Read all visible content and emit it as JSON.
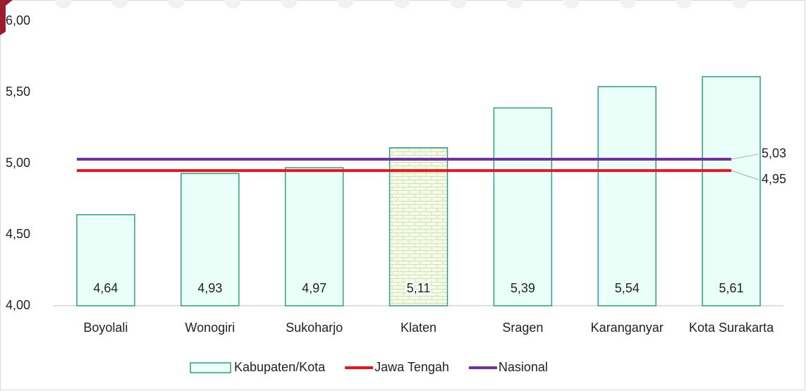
{
  "chart_data": {
    "type": "bar",
    "categories": [
      "Boyolali",
      "Wonogiri",
      "Sukoharjo",
      "Klaten",
      "Sragen",
      "Karanganyar",
      "Kota Surakarta"
    ],
    "series": [
      {
        "name": "Kabupaten/Kota",
        "type": "bar",
        "color": "#2e9e8a",
        "fill": "#eafff7",
        "values": [
          4.64,
          4.93,
          4.97,
          5.11,
          5.39,
          5.54,
          5.61
        ],
        "value_labels": [
          "4,64",
          "4,93",
          "4,97",
          "5,11",
          "5,39",
          "5,54",
          "5,61"
        ],
        "pattern_index": 3
      },
      {
        "name": "Jawa Tengah",
        "type": "line",
        "color": "#e8141c",
        "values": [
          4.95,
          4.95,
          4.95,
          4.95,
          4.95,
          4.95,
          4.95
        ],
        "end_label": "4,95"
      },
      {
        "name": "Nasional",
        "type": "line",
        "color": "#7030a0",
        "values": [
          5.03,
          5.03,
          5.03,
          5.03,
          5.03,
          5.03,
          5.03
        ],
        "end_label": "5,03"
      }
    ],
    "ylim": [
      4,
      6
    ],
    "yticks": [
      {
        "value": 4,
        "label": "4,00"
      },
      {
        "value": 4.5,
        "label": "4,50"
      },
      {
        "value": 5,
        "label": "5,00"
      },
      {
        "value": 5.5,
        "label": "5,50"
      },
      {
        "value": 6,
        "label": "6,00"
      }
    ],
    "legend": "bottom"
  }
}
